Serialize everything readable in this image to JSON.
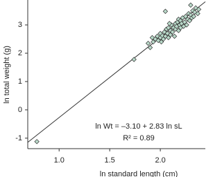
{
  "chart_data": {
    "type": "scatter",
    "x_label": "ln standard length (cm)",
    "y_label": "ln total weight (g)",
    "annotations": [
      "ln Wt = –3.10 + 2.83 ln sL",
      "R² = 0.89"
    ],
    "fit": {
      "intercept": -3.1,
      "slope": 2.83
    },
    "color": "#b9d9c9",
    "x": [
      0.78,
      1.74,
      2.05,
      1.88,
      1.92,
      1.95,
      1.97,
      1.98,
      2.0,
      2.0,
      2.02,
      2.03,
      2.04,
      2.05,
      2.06,
      2.07,
      2.08,
      2.08,
      2.1,
      2.1,
      2.11,
      2.12,
      2.13,
      2.14,
      2.15,
      2.15,
      2.16,
      2.17,
      2.18,
      2.18,
      2.19,
      2.2,
      2.2,
      2.21,
      2.22,
      2.23,
      2.24,
      2.25,
      2.26,
      2.27,
      2.28,
      2.29,
      2.3,
      2.31,
      2.32,
      2.33,
      2.34,
      2.35,
      2.37,
      2.38,
      2.3,
      1.93,
      1.9,
      2.01,
      2.09
    ],
    "values": [
      -1.12,
      1.78,
      3.48,
      2.35,
      2.55,
      2.5,
      2.6,
      2.45,
      2.55,
      2.7,
      2.62,
      2.5,
      2.75,
      2.6,
      2.85,
      2.7,
      2.55,
      2.9,
      2.8,
      2.65,
      3.0,
      2.75,
      2.9,
      2.6,
      3.05,
      2.85,
      2.95,
      3.1,
      2.8,
      3.2,
      3.0,
      2.9,
      3.15,
      3.05,
      3.25,
      2.95,
      3.1,
      3.3,
      3.0,
      3.2,
      3.4,
      3.15,
      3.35,
      3.25,
      3.5,
      3.3,
      3.45,
      3.6,
      3.4,
      3.55,
      3.7,
      2.4,
      2.2,
      2.4,
      3.05
    ],
    "xlim": [
      0.69,
      2.445
    ],
    "ylim": [
      -1.37,
      3.88
    ],
    "xticks": [
      {
        "value": 1,
        "label": "1.0"
      },
      1.5,
      {
        "value": 2,
        "label": "2.0"
      }
    ],
    "yticks": [
      -1,
      0,
      1,
      2,
      3
    ]
  }
}
